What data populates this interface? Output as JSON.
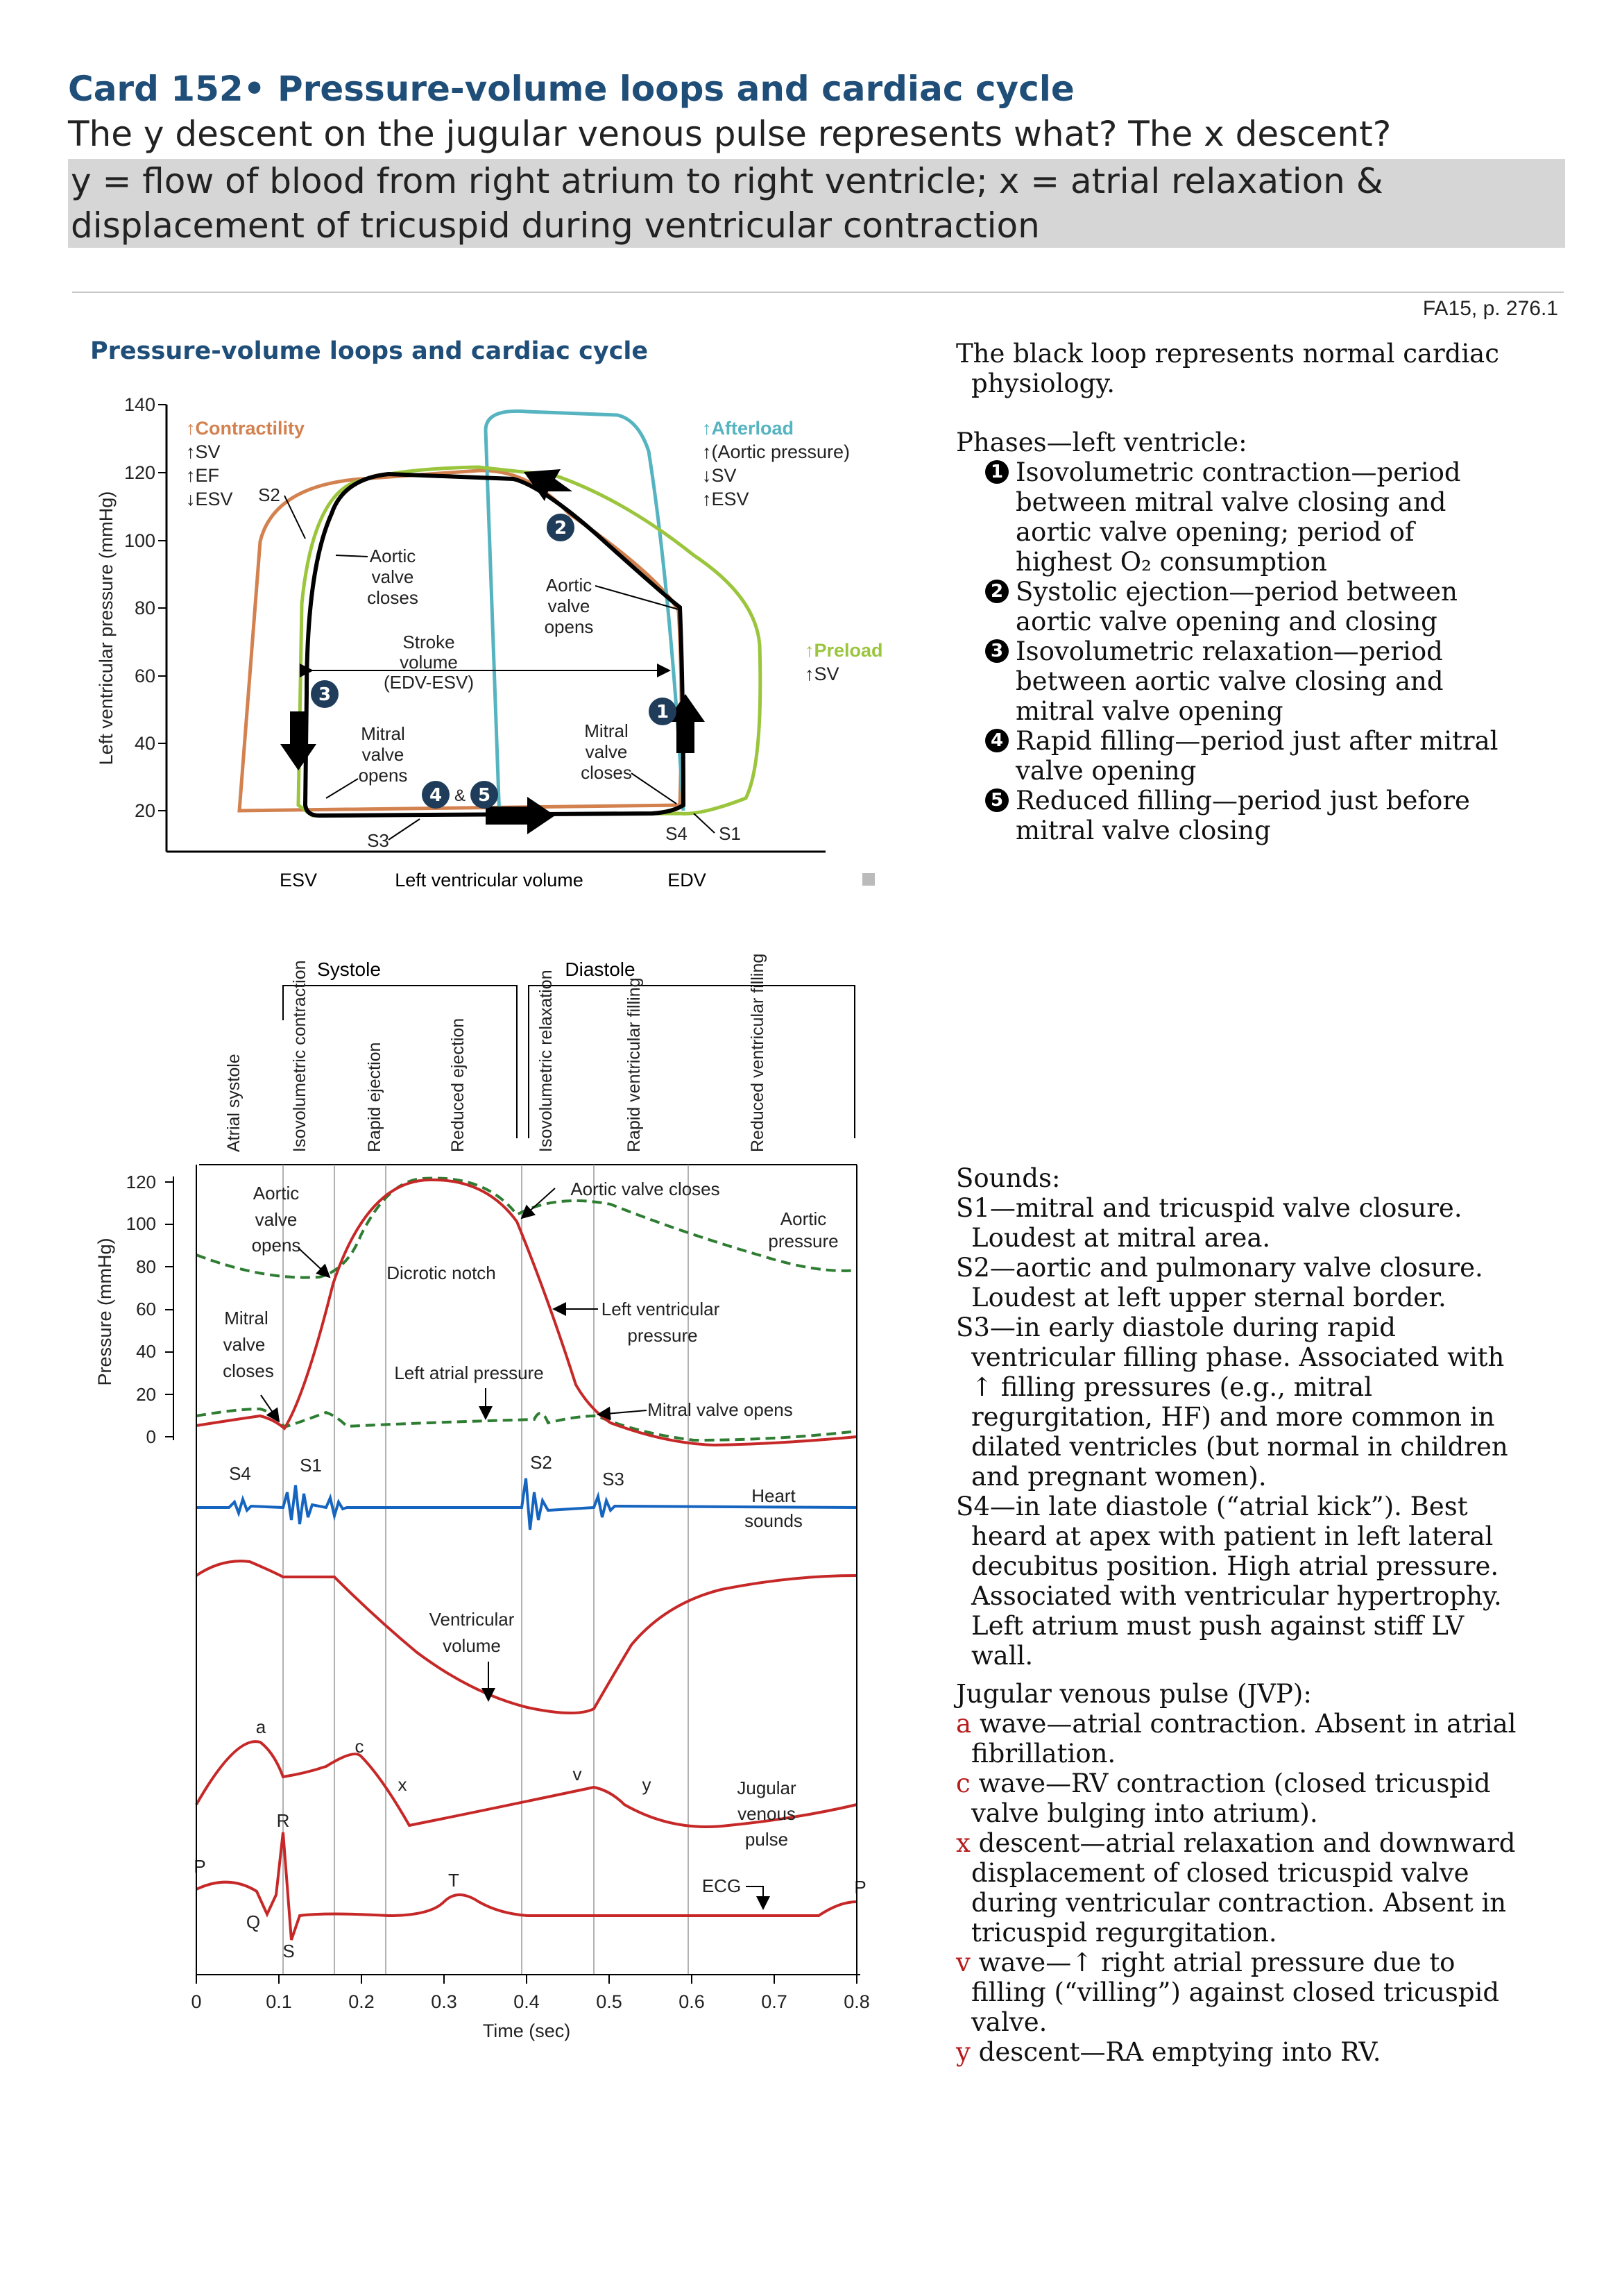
{
  "card": {
    "title": "Card 152• Pressure-volume loops and cardiac cycle",
    "question": "The y descent on the jugular venous pulse represents what? The x descent?",
    "answer": "y = flow of blood from right atrium to right ventricle; x = atrial relaxation & displacement of tricuspid during ventricular contraction"
  },
  "reference": "FA15, p. 276.1",
  "figure_title": "Pressure-volume loops and cardiac cycle",
  "pv_loop": {
    "ylabel": "Left ventricular pressure (mmHg)",
    "xlabel": "Left ventricular volume",
    "yticks": [
      "20",
      "40",
      "60",
      "80",
      "100",
      "120",
      "140"
    ],
    "xticks": [
      "ESV",
      "EDV"
    ],
    "contractility": {
      "title": "↑Contractility",
      "lines": [
        "↑SV",
        "↑EF",
        "↓ESV"
      ]
    },
    "afterload": {
      "title": "↑Afterload",
      "lines": [
        "↑(Aortic pressure)",
        "↓SV",
        "↑ESV"
      ]
    },
    "preload": {
      "title": "↑Preload",
      "lines": [
        "↑SV"
      ]
    },
    "labels": {
      "s2": "S2",
      "s3": "S3",
      "s4": "S4",
      "s1": "S1",
      "aortic_closes": [
        "Aortic",
        "valve",
        "closes"
      ],
      "aortic_opens": [
        "Aortic",
        "valve",
        "opens"
      ],
      "stroke": [
        "Stroke",
        "volume",
        "(EDV-ESV)"
      ],
      "mitral_opens": [
        "Mitral",
        "valve",
        "opens"
      ],
      "mitral_closes": [
        "Mitral",
        "valve",
        "closes"
      ],
      "n1": "1",
      "n2": "2",
      "n3": "3",
      "n4": "4",
      "n5": "5",
      "amp": "&"
    },
    "colors": {
      "normal": "#000000",
      "contractility": "#d2814f",
      "afterload": "#55b4c0",
      "preload": "#9bc53d"
    }
  },
  "cycle": {
    "systole": "Systole",
    "diastole": "Diastole",
    "phases": [
      "Atrial systole",
      "Isovolumetric contraction",
      "Rapid ejection",
      "Reduced ejection",
      "Isovolumetric relaxation",
      "Rapid ventricular filling",
      "Reduced ventricular filling"
    ],
    "ylabel": "Pressure (mmHg)",
    "yticks": [
      "0",
      "20",
      "40",
      "60",
      "80",
      "100",
      "120"
    ],
    "xticks": [
      "0",
      "0.1",
      "0.2",
      "0.3",
      "0.4",
      "0.5",
      "0.6",
      "0.7",
      "0.8"
    ],
    "xlabel": "Time (sec)",
    "labels": {
      "aortic_opens": [
        "Aortic",
        "valve",
        "opens"
      ],
      "aortic_closes": "Aortic valve closes",
      "aortic_pressure": [
        "Aortic",
        "pressure"
      ],
      "dicrotic": "Dicrotic notch",
      "mitral_closes": [
        "Mitral",
        "valve",
        "closes"
      ],
      "lv_pressure": [
        "Left ventricular",
        "pressure"
      ],
      "la_pressure": "Left atrial pressure",
      "mitral_opens": "Mitral valve opens",
      "s4": "S4",
      "s1": "S1",
      "s2": "S2",
      "s3": "S3",
      "heart_sounds": [
        "Heart",
        "sounds"
      ],
      "volume": [
        "Ventricular",
        "volume"
      ],
      "jvp": [
        "Jugular",
        "venous",
        "pulse"
      ],
      "a": "a",
      "c": "c",
      "x": "x",
      "v": "v",
      "y": "y",
      "ecg": "ECG",
      "p": "P",
      "q": "Q",
      "r": "R",
      "s": "S",
      "t": "T"
    }
  },
  "notes": {
    "intro": "The black loop represents normal cardiac physiology.",
    "phases_head": "Phases—left ventricle:",
    "phases": [
      {
        "n": "1",
        "text": "Isovolumetric contraction—period between mitral valve closing and aortic valve opening; period of highest O₂ consumption"
      },
      {
        "n": "2",
        "text": "Systolic ejection—period between aortic valve opening and closing"
      },
      {
        "n": "3",
        "text": "Isovolumetric relaxation—period between aortic valve closing and mitral valve opening"
      },
      {
        "n": "4",
        "text": "Rapid filling—period just after mitral valve opening"
      },
      {
        "n": "5",
        "text": "Reduced filling—period just before mitral valve closing"
      }
    ],
    "sounds_head": "Sounds:",
    "sounds": [
      "S1—mitral and tricuspid valve closure. Loudest at mitral area.",
      "S2—aortic and pulmonary valve closure. Loudest at left upper sternal border.",
      "S3—in early diastole during rapid ventricular filling phase. Associated with ↑ filling pressures (e.g., mitral regurgitation, HF) and more common in dilated ventricles (but normal in children and pregnant women).",
      "S4—in late diastole (“atrial kick”). Best heard at apex with patient in left lateral decubitus position. High atrial pressure. Associated with ventricular hypertrophy. Left atrium must push against stiff LV wall."
    ],
    "jvp_head": "Jugular venous pulse (JVP):",
    "jvp": [
      {
        "k": "a",
        "text": " wave—atrial contraction. Absent in atrial fibrillation."
      },
      {
        "k": "c",
        "text": " wave—RV contraction (closed tricuspid valve bulging into atrium)."
      },
      {
        "k": "x",
        "text": " descent—atrial relaxation and downward displacement of closed tricuspid valve during ventricular contraction. Absent in tricuspid regurgitation."
      },
      {
        "k": "v",
        "text": " wave—↑ right atrial pressure due to filling (“villing”) against closed tricuspid valve."
      },
      {
        "k": "y",
        "text": " descent—RA emptying into RV."
      }
    ]
  }
}
